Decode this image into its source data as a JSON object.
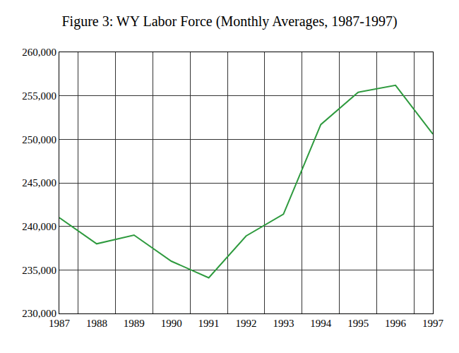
{
  "chart_data": {
    "type": "line",
    "title": "Figure 3: WY Labor Force (Monthly Averages, 1987-1997)",
    "categories": [
      "1987",
      "1988",
      "1989",
      "1990",
      "1991",
      "1992",
      "1993",
      "1994",
      "1995",
      "1996",
      "1997"
    ],
    "values": [
      241000,
      238000,
      239000,
      236000,
      234100,
      238900,
      241400,
      251700,
      255400,
      256200,
      250600
    ],
    "color": "#2e9a3e",
    "ylim": [
      230000,
      260000
    ],
    "yticks": [
      {
        "value": 230000,
        "label": "230,000"
      },
      {
        "value": 235000,
        "label": "235,000"
      },
      {
        "value": 240000,
        "label": "240,000"
      },
      {
        "value": 245000,
        "label": "245,000"
      },
      {
        "value": 250000,
        "label": "250,000"
      },
      {
        "value": 255000,
        "label": "255,000"
      },
      {
        "value": 260000,
        "label": "260,000"
      }
    ],
    "grid": true
  }
}
